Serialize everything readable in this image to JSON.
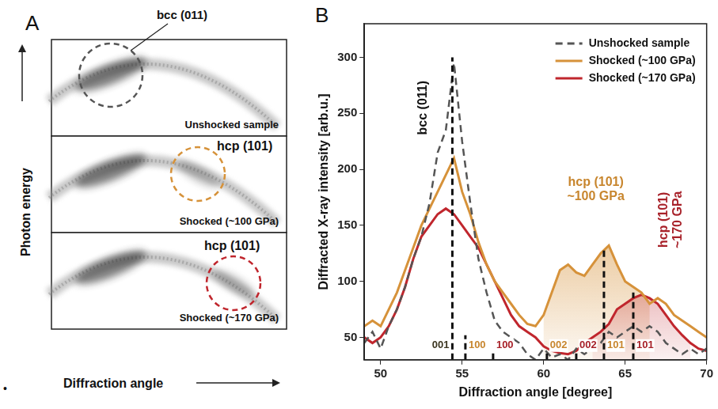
{
  "panel_a": {
    "letter": "A",
    "y_axis_label": "Photon energy",
    "x_axis_label": "Diffraction angle",
    "stray_mark": "•",
    "frames": [
      {
        "caption": "Unshocked sample",
        "highlight": "bcc (011)",
        "color": "#555555"
      },
      {
        "caption": "Shocked (~100 GPa)",
        "highlight": "hcp (101)",
        "color": "#d6923a"
      },
      {
        "caption": "Shocked (~170 GPa)",
        "highlight": "hcp (101)",
        "color": "#c0262d"
      }
    ]
  },
  "panel_b": {
    "letter": "B"
  },
  "chart_data": {
    "type": "line",
    "x_label": "Diffraction angle [degree]",
    "y_label": "Diffracted X-ray intensity [arb.u.]",
    "xlim": [
      49,
      70
    ],
    "xticks": [
      50,
      55,
      60,
      65,
      70
    ],
    "ylim": [
      30,
      330
    ],
    "yticks": [
      50,
      100,
      150,
      200,
      250,
      300
    ],
    "grid": false,
    "legend": "top-right",
    "x": [
      49,
      49.5,
      50,
      50.5,
      51,
      51.5,
      52,
      52.5,
      53,
      53.5,
      54,
      54.5,
      55,
      55.5,
      56,
      56.5,
      57,
      57.5,
      58,
      58.5,
      59,
      59.5,
      60,
      60.5,
      61,
      61.5,
      62,
      62.5,
      63,
      63.5,
      64,
      64.5,
      65,
      65.5,
      66,
      66.5,
      67,
      67.5,
      68,
      68.5,
      69,
      69.5,
      70
    ],
    "series": [
      {
        "name": "Unshocked sample",
        "color": "#555555",
        "line_style": "dashed",
        "values": [
          45,
          55,
          40,
          60,
          75,
          95,
          120,
          140,
          170,
          215,
          235,
          295,
          225,
          170,
          120,
          90,
          65,
          55,
          50,
          45,
          35,
          30,
          40,
          32,
          35,
          30,
          40,
          35,
          40,
          45,
          55,
          50,
          55,
          60,
          55,
          60,
          55,
          45,
          40,
          35,
          40,
          35,
          40
        ]
      },
      {
        "name": "Shocked (~100 GPa)",
        "color": "#d6923a",
        "line_style": "solid",
        "shaded_range": [
          60,
          66.5
        ],
        "values": [
          60,
          65,
          60,
          75,
          90,
          110,
          130,
          150,
          165,
          180,
          195,
          210,
          180,
          160,
          135,
          115,
          100,
          90,
          80,
          70,
          62,
          60,
          70,
          90,
          110,
          115,
          108,
          105,
          115,
          125,
          132,
          115,
          100,
          95,
          90,
          80,
          85,
          80,
          70,
          65,
          60,
          55,
          50
        ]
      },
      {
        "name": "Shocked (~170 GPa)",
        "color": "#c0262d",
        "line_style": "solid",
        "shaded_range": [
          63,
          69
        ],
        "values": [
          50,
          45,
          50,
          60,
          75,
          95,
          120,
          140,
          150,
          160,
          165,
          160,
          150,
          140,
          130,
          115,
          100,
          85,
          70,
          60,
          55,
          50,
          42,
          38,
          36,
          35,
          38,
          45,
          50,
          55,
          62,
          75,
          80,
          85,
          88,
          85,
          80,
          70,
          60,
          52,
          45,
          40,
          38
        ]
      }
    ],
    "reference_lines": [
      {
        "x": 54.4,
        "height": 300,
        "label": "001",
        "color": "#111111",
        "label_color": "#3b3520",
        "side": "left"
      },
      {
        "x": 55.2,
        "height": 52,
        "label": "100",
        "color": "#111111",
        "label_color": "#c8862e",
        "side": "right"
      },
      {
        "x": 56.9,
        "height": 37,
        "label": "100",
        "color": "#111111",
        "label_color": "#a8222a",
        "side": "right"
      },
      {
        "x": 60.2,
        "height": 38,
        "label": "002",
        "color": "#111111",
        "label_color": "#c8862e",
        "side": "right"
      },
      {
        "x": 62.0,
        "height": 37,
        "label": "002",
        "color": "#111111",
        "label_color": "#a8222a",
        "side": "right"
      },
      {
        "x": 63.7,
        "height": 130,
        "label": "101",
        "color": "#111111",
        "label_color": "#c8862e",
        "side": "right"
      },
      {
        "x": 65.5,
        "height": 90,
        "label": "101",
        "color": "#111111",
        "label_color": "#a8222a",
        "side": "right"
      }
    ],
    "annotations": [
      {
        "text": [
          "bcc (011)"
        ],
        "x": 52.6,
        "y": 255,
        "color": "#111111",
        "vertical": true
      },
      {
        "text": [
          "hcp (101)",
          "~100 GPa"
        ],
        "x": 63.2,
        "y": 182,
        "color": "#c8862e",
        "vertical": false
      },
      {
        "text": [
          "hcp (101)",
          "~170 GPa"
        ],
        "x": 67.8,
        "y": 155,
        "color": "#a8222a",
        "vertical": true
      }
    ]
  }
}
